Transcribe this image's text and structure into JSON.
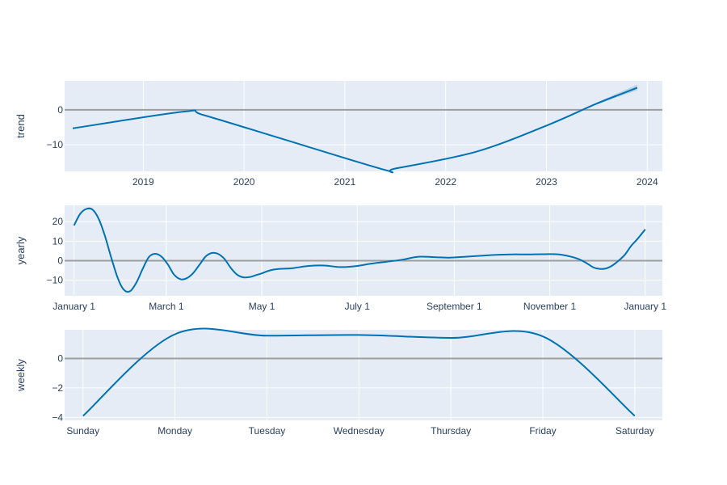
{
  "chart_data": [
    {
      "type": "line",
      "ylabel": "trend",
      "x_ticks": [
        "2019",
        "2020",
        "2021",
        "2022",
        "2023",
        "2024"
      ],
      "y_ticks": [
        "0",
        "−10"
      ],
      "xlim": [
        2018.22,
        2024.15
      ],
      "ylim": [
        -17.6,
        8.3
      ],
      "tick_values_x": [
        2019,
        2020,
        2021,
        2022,
        2023,
        2024
      ],
      "tick_values_y": [
        0,
        -10
      ],
      "series": [
        {
          "color": "#0072B2",
          "x": [
            2018.3,
            2019.4,
            2019.6,
            2020.4,
            2021.4,
            2021.5,
            2022.3,
            2023.0,
            2023.5,
            2023.9
          ],
          "y": [
            -5.3,
            -0.5,
            -1.5,
            -8.5,
            -17.2,
            -16.8,
            -12.0,
            -4.5,
            1.8,
            6.3
          ]
        }
      ],
      "band": {
        "color": "#0072B2",
        "x": [
          2023.5,
          2023.7,
          2023.9
        ],
        "lower": [
          1.5,
          3.6,
          5.6
        ],
        "upper": [
          2.1,
          4.7,
          7.2
        ]
      },
      "zero_line": 0
    },
    {
      "type": "line",
      "ylabel": "yearly",
      "x_ticks": [
        "January  1",
        "March  1",
        "May  1",
        "July  1",
        "September  1",
        "November  1",
        "January  1"
      ],
      "y_ticks": [
        "20",
        "10",
        "0",
        "−10"
      ],
      "xlim": [
        -6,
        376
      ],
      "ylim": [
        -18,
        28.3
      ],
      "tick_values_x": [
        0,
        59,
        120,
        181,
        243,
        304,
        365
      ],
      "tick_values_y": [
        20,
        10,
        0,
        -10
      ],
      "series": [
        {
          "color": "#0072B2",
          "x": [
            0,
            4,
            8,
            12,
            16,
            20,
            24,
            28,
            32,
            36,
            40,
            44,
            48,
            52,
            56,
            60,
            64,
            68,
            72,
            76,
            80,
            84,
            88,
            92,
            96,
            100,
            104,
            108,
            112,
            116,
            120,
            125,
            130,
            140,
            150,
            160,
            170,
            180,
            190,
            200,
            210,
            220,
            230,
            240,
            250,
            260,
            270,
            280,
            290,
            300,
            310,
            320,
            326,
            332,
            336,
            340,
            344,
            348,
            352,
            356,
            360,
            365
          ],
          "y": [
            18,
            24,
            26.5,
            26,
            21,
            12,
            1,
            -9,
            -15,
            -15.5,
            -11,
            -4,
            2,
            3.5,
            2,
            -2,
            -7.2,
            -9.5,
            -9,
            -6.5,
            -2.3,
            2,
            3.9,
            3.5,
            1,
            -3.5,
            -7,
            -8.5,
            -8.4,
            -7.5,
            -6.5,
            -5,
            -4.3,
            -3.8,
            -2.7,
            -2.5,
            -3.3,
            -2.8,
            -1.5,
            -0.5,
            0.5,
            2,
            1.8,
            1.5,
            2,
            2.5,
            3,
            3.2,
            3.2,
            3.3,
            3.2,
            1.5,
            -0.5,
            -3.5,
            -4.2,
            -4,
            -2.5,
            0,
            3,
            7.5,
            11,
            16
          ]
        }
      ],
      "zero_line": 0
    },
    {
      "type": "line",
      "ylabel": "weekly",
      "x_ticks": [
        "Sunday",
        "Monday",
        "Tuesday",
        "Wednesday",
        "Thursday",
        "Friday",
        "Saturday"
      ],
      "y_ticks": [
        "0",
        "−2",
        "−4"
      ],
      "xlim": [
        -0.2,
        6.3
      ],
      "ylim": [
        -4.2,
        1.95
      ],
      "tick_values_x": [
        0,
        1,
        2,
        3,
        4,
        5,
        6
      ],
      "tick_values_y": [
        0,
        -2,
        -4
      ],
      "series": [
        {
          "color": "#0072B2",
          "x": [
            0,
            1,
            2,
            3,
            4,
            5,
            6
          ],
          "y": [
            -3.9,
            1.65,
            1.55,
            1.6,
            1.4,
            1.5,
            -3.9
          ]
        }
      ],
      "zero_line": 0
    }
  ]
}
